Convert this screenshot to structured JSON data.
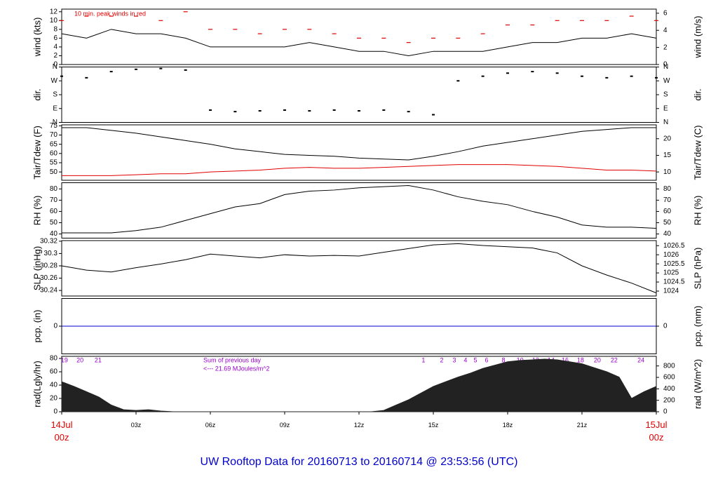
{
  "title": "UW Rooftop Data for 20160713  to  20160714 @ 23:53:56  (UTC)",
  "chart_data": [
    {
      "type": "line",
      "ylabel": "wind (kts)",
      "y2label": "wind (m/s)",
      "annotation": "10 min. peak winds in red",
      "xlim": [
        0,
        24
      ],
      "ylim": [
        0,
        12.6
      ],
      "yticks": [
        0,
        2,
        4,
        6,
        8,
        10,
        12
      ],
      "y2lim": [
        0,
        6.48
      ],
      "y2ticks": [
        0,
        2,
        4,
        6
      ],
      "x": [
        0,
        1,
        2,
        3,
        4,
        5,
        6,
        7,
        8,
        9,
        10,
        11,
        12,
        13,
        14,
        15,
        16,
        17,
        18,
        19,
        20,
        21,
        22,
        23,
        24
      ],
      "series": [
        {
          "name": "wind",
          "color": "#000000",
          "mode": "line",
          "values": [
            7,
            6,
            8,
            7,
            7,
            6,
            4,
            4,
            4,
            4,
            5,
            4,
            3,
            3,
            2,
            3,
            3,
            3,
            4,
            5,
            5,
            6,
            6,
            7,
            6
          ]
        },
        {
          "name": "peak",
          "color": "#e00000",
          "mode": "dash",
          "values": [
            10,
            11,
            11,
            11,
            10,
            12,
            8,
            8,
            7,
            8,
            8,
            7,
            6,
            6,
            5,
            6,
            6,
            7,
            9,
            9,
            10,
            10,
            10,
            11,
            10
          ]
        }
      ]
    },
    {
      "type": "scatter",
      "ylabel": "dir.",
      "y2label": "dir.",
      "xlim": [
        0,
        24
      ],
      "ylim": [
        0,
        360
      ],
      "yticks": [
        {
          "value": 0,
          "label": "N"
        },
        {
          "value": 90,
          "label": "E"
        },
        {
          "value": 180,
          "label": "S"
        },
        {
          "value": 270,
          "label": "W"
        },
        {
          "value": 360,
          "label": "N"
        }
      ],
      "y2lim": [
        0,
        360
      ],
      "y2ticks": [
        {
          "value": 0,
          "label": "N"
        },
        {
          "value": 90,
          "label": "E"
        },
        {
          "value": 180,
          "label": "S"
        },
        {
          "value": 270,
          "label": "W"
        },
        {
          "value": 360,
          "label": "N"
        }
      ],
      "x": [
        0,
        1,
        2,
        3,
        4,
        5,
        6,
        7,
        8,
        9,
        10,
        11,
        12,
        13,
        14,
        15,
        16,
        17,
        18,
        19,
        20,
        21,
        22,
        23,
        24
      ],
      "series": [
        {
          "name": "dir",
          "color": "#000000",
          "values": [
            300,
            290,
            330,
            345,
            350,
            340,
            80,
            70,
            75,
            80,
            75,
            80,
            75,
            80,
            70,
            50,
            270,
            300,
            320,
            330,
            320,
            300,
            290,
            300,
            290
          ]
        }
      ]
    },
    {
      "type": "line",
      "ylabel": "Tair/Tdew (F)",
      "y2label": "Tair/Tdew (C)",
      "xlim": [
        0,
        24
      ],
      "ylim": [
        45.5,
        75.5
      ],
      "yticks": [
        50,
        55,
        60,
        65,
        70,
        75
      ],
      "y2lim": [
        7.5,
        24.17
      ],
      "y2ticks": [
        10,
        15,
        20
      ],
      "x": [
        0,
        1,
        2,
        3,
        4,
        5,
        6,
        7,
        8,
        9,
        10,
        11,
        12,
        13,
        14,
        15,
        16,
        17,
        18,
        19,
        20,
        21,
        22,
        23,
        24
      ],
      "series": [
        {
          "name": "Tair",
          "color": "#000000",
          "mode": "line",
          "values": [
            74,
            74,
            72.5,
            71,
            69,
            67,
            65,
            62.5,
            61,
            59.5,
            59,
            58.5,
            57.5,
            57,
            56.5,
            58.5,
            61,
            64,
            66,
            68,
            70,
            72,
            73,
            74,
            74
          ]
        },
        {
          "name": "Tdew",
          "color": "#e00000",
          "mode": "line",
          "values": [
            48,
            48,
            48,
            48.5,
            49,
            49,
            50,
            50.5,
            51,
            52,
            52.5,
            52,
            52,
            52.5,
            53,
            53.5,
            54,
            54,
            54,
            53.5,
            53,
            52,
            51,
            51,
            50.5
          ]
        }
      ]
    },
    {
      "type": "line",
      "ylabel": "RH (%)",
      "y2label": "RH (%)",
      "xlim": [
        0,
        24
      ],
      "ylim": [
        36.3,
        85.5
      ],
      "yticks": [
        40,
        50,
        60,
        70,
        80
      ],
      "y2lim": [
        36.3,
        85.5
      ],
      "y2ticks": [
        40,
        50,
        60,
        70,
        80
      ],
      "x": [
        0,
        1,
        2,
        3,
        4,
        5,
        6,
        7,
        8,
        9,
        10,
        11,
        12,
        13,
        14,
        15,
        16,
        17,
        18,
        19,
        20,
        21,
        22,
        23,
        24
      ],
      "series": [
        {
          "name": "RH",
          "color": "#000000",
          "mode": "line",
          "values": [
            41,
            41,
            41,
            43,
            46,
            52,
            58,
            64,
            67,
            75,
            78,
            79,
            81,
            82,
            83,
            79,
            73,
            69,
            66,
            60,
            55,
            48,
            46,
            46,
            45
          ]
        }
      ]
    },
    {
      "type": "line",
      "ylabel": "SLP (inHg)",
      "y2label": "SLP (hPa)",
      "xlim": [
        0,
        24
      ],
      "ylim": [
        30.231,
        30.321
      ],
      "yticks": [
        30.24,
        30.26,
        30.28,
        30.3,
        {
          "value": 30.32,
          "label": "30.32"
        }
      ],
      "y2lim": [
        1023.73,
        1026.78
      ],
      "y2ticks": [
        1024,
        1024.5,
        1025,
        1025.5,
        1026,
        1026.5
      ],
      "x": [
        0,
        1,
        2,
        3,
        4,
        5,
        6,
        7,
        8,
        9,
        10,
        11,
        12,
        13,
        14,
        15,
        16,
        17,
        18,
        19,
        20,
        21,
        22,
        23,
        24
      ],
      "series": [
        {
          "name": "SLP",
          "color": "#000000",
          "mode": "line",
          "values": [
            30.28,
            30.273,
            30.27,
            30.277,
            30.283,
            30.29,
            30.299,
            30.296,
            30.293,
            30.298,
            30.296,
            30.297,
            30.296,
            30.302,
            30.308,
            30.314,
            30.316,
            30.313,
            30.311,
            30.309,
            30.301,
            30.28,
            30.265,
            30.252,
            30.236
          ]
        }
      ]
    },
    {
      "type": "line",
      "ylabel": "pcp. (in)",
      "y2label": "pcp. (mm)",
      "xlim": [
        0,
        24
      ],
      "ylim": [
        -1,
        1
      ],
      "yticks": [
        0
      ],
      "y2lim": [
        -25.4,
        25.4
      ],
      "y2ticks": [
        0
      ],
      "x": [
        0,
        1,
        2,
        3,
        4,
        5,
        6,
        7,
        8,
        9,
        10,
        11,
        12,
        13,
        14,
        15,
        16,
        17,
        18,
        19,
        20,
        21,
        22,
        23,
        24
      ],
      "series": [
        {
          "name": "pcp",
          "color": "#0000cc",
          "mode": "line",
          "values": [
            0,
            0,
            0,
            0,
            0,
            0,
            0,
            0,
            0,
            0,
            0,
            0,
            0,
            0,
            0,
            0,
            0,
            0,
            0,
            0,
            0,
            0,
            0,
            0,
            0
          ]
        }
      ]
    },
    {
      "type": "area",
      "ylabel": "rad(Lgly/hr)",
      "y2label": "rad (W/m^2)",
      "annotations": [
        "Sum of previous day",
        "<--- 21.69 MJoules/m^2"
      ],
      "hour_markers": {
        "color": "#9900cc",
        "x": [
          0.11,
          0.74,
          1.47,
          14.6,
          15.34,
          15.85,
          16.3,
          16.7,
          17.15,
          17.83,
          18.5,
          19.13,
          19.75,
          20.32,
          20.94,
          21.62,
          22.3,
          23.38
        ],
        "labels": [
          "19",
          "20",
          "21",
          "1",
          "2",
          "3",
          "4",
          "5",
          "6",
          "8",
          "10",
          "12",
          "14",
          "16",
          "18",
          "20",
          "22",
          "24"
        ]
      },
      "xlim": [
        0,
        24
      ],
      "ylim": [
        0,
        83.2
      ],
      "yticks": [
        0,
        20,
        40,
        60,
        80
      ],
      "y2lim": [
        0,
        968
      ],
      "y2ticks": [
        0,
        200,
        400,
        600,
        800
      ],
      "xticks": [
        {
          "value": 0,
          "label": "14Jul\n00z",
          "color": "#e00000"
        },
        {
          "value": 3,
          "label": "03z"
        },
        {
          "value": 6,
          "label": "06z"
        },
        {
          "value": 9,
          "label": "09z"
        },
        {
          "value": 12,
          "label": "12z"
        },
        {
          "value": 15,
          "label": "15z"
        },
        {
          "value": 18,
          "label": "18z"
        },
        {
          "value": 21,
          "label": "21z"
        },
        {
          "value": 24,
          "label": "15Jul\n00z",
          "color": "#e00000"
        }
      ],
      "x": [
        0,
        0.5,
        1,
        1.5,
        2,
        2.5,
        3,
        3.5,
        4,
        4.5,
        5,
        5.5,
        6,
        6.5,
        7,
        7.5,
        8,
        8.5,
        9,
        9.5,
        10,
        10.5,
        11,
        11.5,
        12,
        12.5,
        13,
        13.5,
        14,
        14.5,
        15,
        15.5,
        16,
        16.5,
        17,
        17.5,
        18,
        18.5,
        19,
        19.5,
        20,
        20.5,
        21,
        21.5,
        22,
        22.5,
        23,
        23.5,
        24
      ],
      "series": [
        {
          "name": "rad",
          "color": "#222222",
          "values": [
            45,
            38,
            30,
            22,
            10,
            3,
            2,
            3,
            1,
            0,
            0,
            0,
            0,
            0,
            0,
            0,
            0,
            0,
            0,
            0,
            0,
            0,
            0,
            0,
            0,
            0,
            2,
            10,
            18,
            28,
            38,
            45,
            52,
            58,
            65,
            70,
            75,
            77,
            78,
            79,
            78,
            75,
            72,
            66,
            60,
            52,
            20,
            30,
            38
          ]
        }
      ]
    }
  ]
}
